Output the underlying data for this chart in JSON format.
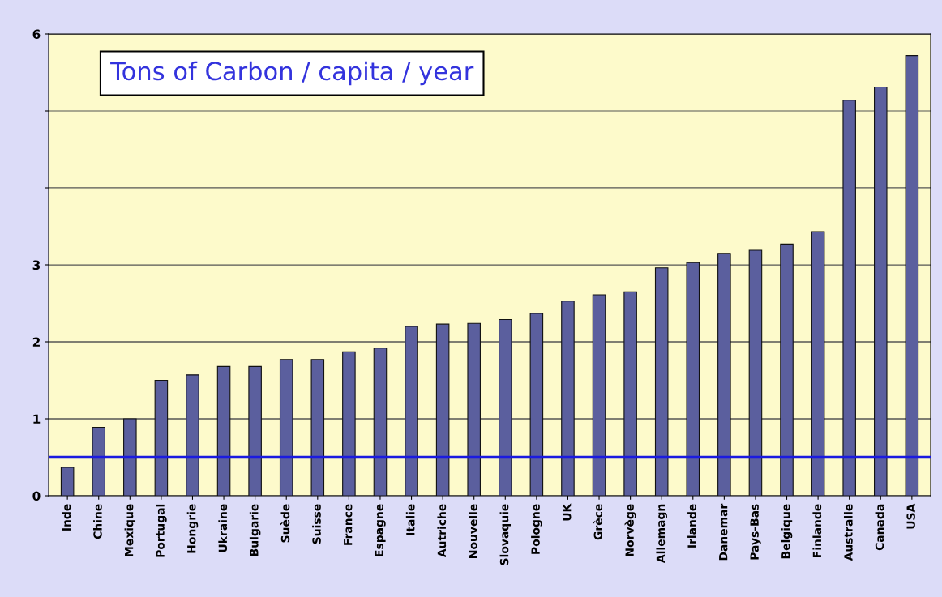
{
  "chart_data": {
    "type": "bar",
    "title": "Tons of Carbon / capita / year",
    "categories": [
      "Inde",
      "Chine",
      "Mexique",
      "Portugal",
      "Hongrie",
      "Ukraine",
      "Bulgarie",
      "Suède",
      "Suisse",
      "France",
      "Espagne",
      "Italie",
      "Autriche",
      "Nouvelle",
      "Slovaquie",
      "Pologne",
      "UK",
      "Grèce",
      "Norvège",
      "Allemagn",
      "Irlande",
      "Danemar",
      "Pays-Bas",
      "Belgique",
      "Finlande",
      "Australie",
      "Canada",
      "USA"
    ],
    "values": [
      0.37,
      0.89,
      1.0,
      1.5,
      1.57,
      1.68,
      1.68,
      1.77,
      1.77,
      1.87,
      1.92,
      2.2,
      2.23,
      2.24,
      2.29,
      2.37,
      2.53,
      2.61,
      2.65,
      2.96,
      3.03,
      3.15,
      3.19,
      3.27,
      3.43,
      5.14,
      5.31,
      5.72
    ],
    "color": "#5b5f9e",
    "ylim": [
      0,
      6
    ],
    "yticks": [
      0,
      1,
      2,
      3,
      {
        "value": 4,
        "label": null
      },
      {
        "value": 5,
        "label": null
      },
      6
    ],
    "grid": "y",
    "ref_lines": [
      {
        "axis": "y",
        "value": 0.5,
        "color": "#1a1ae0"
      }
    ]
  }
}
